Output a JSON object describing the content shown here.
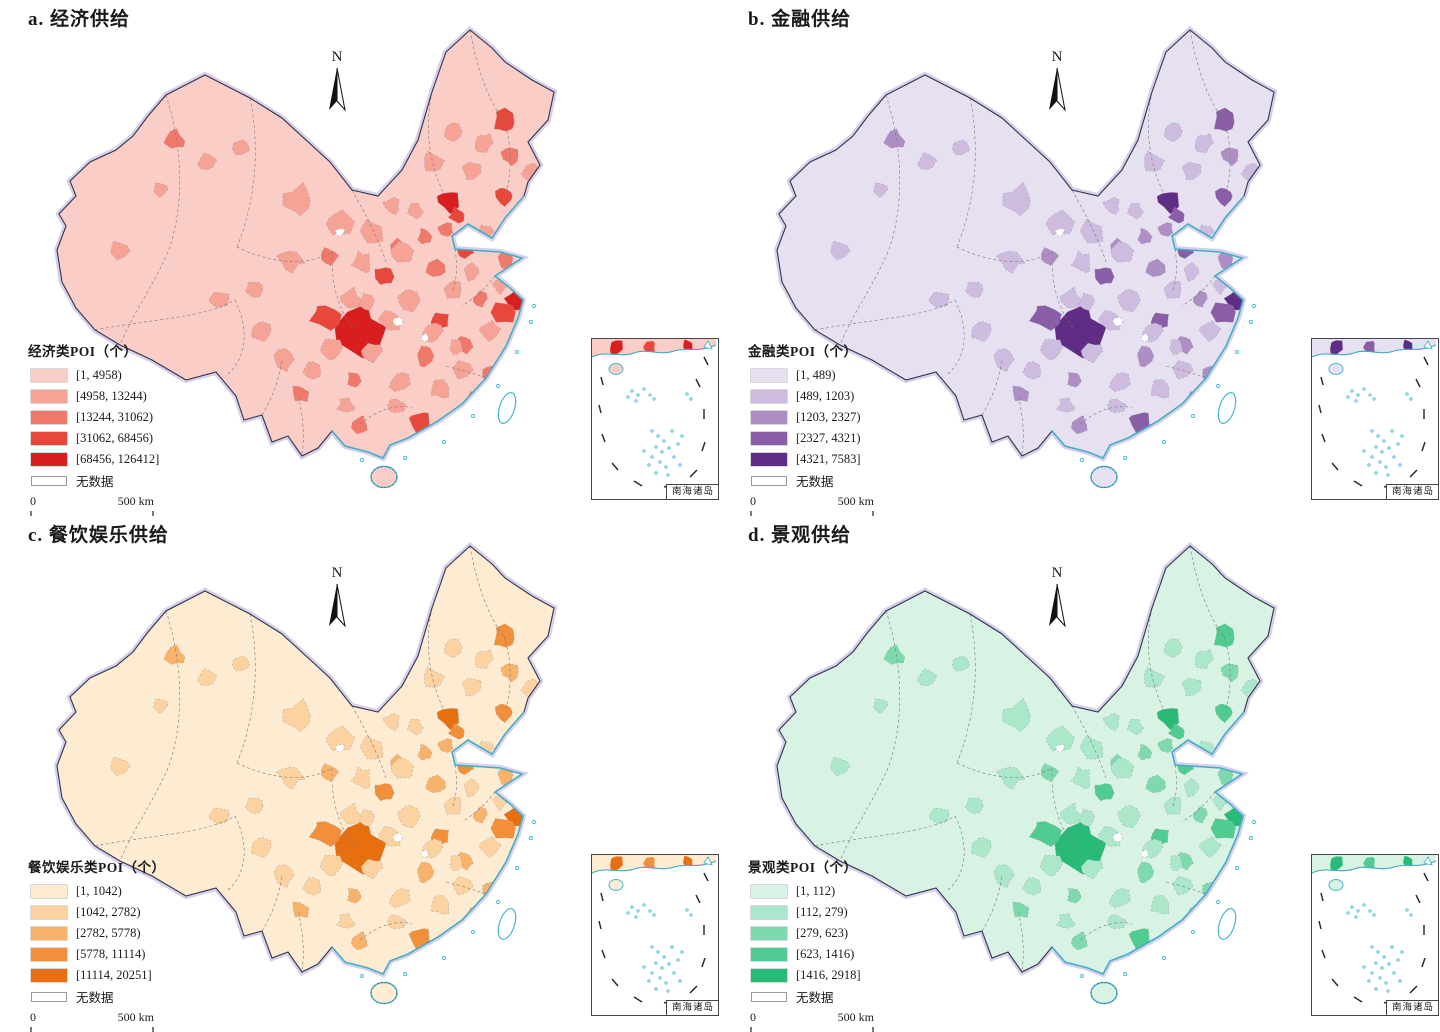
{
  "figure": {
    "north_label": "N",
    "style": {
      "coastline_color": "#45B7D2",
      "country_border_color": "#33334A",
      "halo_color": "#CBC5E8",
      "no_data_color": "#FFFFFF",
      "background": "#FFFFFF"
    },
    "panels": [
      {
        "id": "a",
        "title": "a. 经济供给",
        "legend": {
          "title": "经济类POI（个）",
          "classes": [
            {
              "label": "[1, 4958)",
              "color": "#FACDC6"
            },
            {
              "label": "[4958, 13244)",
              "color": "#F6A396"
            },
            {
              "label": "[13244, 31062)",
              "color": "#F0796A"
            },
            {
              "label": "[31062, 68456)",
              "color": "#E8483C"
            },
            {
              "label": "[68456, 126412]",
              "color": "#D91E20"
            }
          ],
          "no_data": {
            "label": "无数据",
            "color": "#FFFFFF"
          }
        },
        "scale_bar": {
          "start": "0",
          "end": "500 km"
        },
        "inset_label": "南海诸岛"
      },
      {
        "id": "b",
        "title": "b. 金融供给",
        "legend": {
          "title": "金融类POI（个）",
          "classes": [
            {
              "label": "[1, 489)",
              "color": "#E7E0F0"
            },
            {
              "label": "[489, 1203)",
              "color": "#CDBCDF"
            },
            {
              "label": "[1203, 2327)",
              "color": "#AD8FC6"
            },
            {
              "label": "[2327, 4321)",
              "color": "#8A5DA7"
            },
            {
              "label": "[4321, 7583]",
              "color": "#5F2C86"
            }
          ],
          "no_data": {
            "label": "无数据",
            "color": "#FFFFFF"
          }
        },
        "scale_bar": {
          "start": "0",
          "end": "500 km"
        },
        "inset_label": "南海诸岛"
      },
      {
        "id": "c",
        "title": "c. 餐饮娱乐供给",
        "legend": {
          "title": "餐饮娱乐类POI（个）",
          "classes": [
            {
              "label": "[1, 1042)",
              "color": "#FDEBD2"
            },
            {
              "label": "[1042, 2782)",
              "color": "#FBD2A0"
            },
            {
              "label": "[2782, 5778)",
              "color": "#F8B269"
            },
            {
              "label": "[5778, 11114)",
              "color": "#F18F3B"
            },
            {
              "label": "[11114, 20251]",
              "color": "#E86F10"
            }
          ],
          "no_data": {
            "label": "无数据",
            "color": "#FFFFFF"
          }
        },
        "scale_bar": {
          "start": "0",
          "end": "500 km"
        },
        "inset_label": "南海诸岛"
      },
      {
        "id": "d",
        "title": "d. 景观供给",
        "legend": {
          "title": "景观类POI（个）",
          "classes": [
            {
              "label": "[1, 112)",
              "color": "#D8F2E3"
            },
            {
              "label": "[112, 279)",
              "color": "#ABE7CA"
            },
            {
              "label": "[279, 623)",
              "color": "#7EDAAE"
            },
            {
              "label": "[623, 1416)",
              "color": "#50CB91"
            },
            {
              "label": "[1416, 2918]",
              "color": "#2ABA78"
            }
          ],
          "no_data": {
            "label": "无数据",
            "color": "#FFFFFF"
          }
        },
        "scale_bar": {
          "start": "0",
          "end": "500 km"
        },
        "inset_label": "南海诸岛"
      }
    ]
  }
}
